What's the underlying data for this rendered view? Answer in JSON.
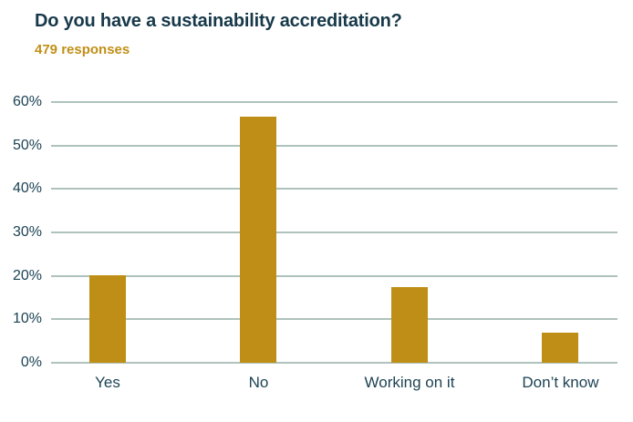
{
  "header": {
    "title": "Do you have a sustainability accreditation?",
    "subtitle": "479 responses"
  },
  "chart_data": {
    "type": "bar",
    "title": "Do you have a sustainability accreditation?",
    "subtitle": "479 responses",
    "categories": [
      "Yes",
      "No",
      "Working on it",
      "Don’t know"
    ],
    "values": [
      20.1,
      56.6,
      17.4,
      6.9
    ],
    "unit": "%",
    "xlabel": "",
    "ylabel": "",
    "ylim": [
      0,
      63
    ],
    "yticks": [
      0,
      10,
      20,
      30,
      40,
      50,
      60
    ],
    "ytick_labels": [
      "0%",
      "10%",
      "20%",
      "30%",
      "40%",
      "50%",
      "60%"
    ],
    "grid": true,
    "legend": false,
    "bar_color": "#BE8E16"
  },
  "colors": {
    "background": "#FFFFFF",
    "title_text": "#17394A",
    "subtitle_gold": "#C18F17",
    "axis_text": "#1D4355",
    "bar_gold": "#BE8E16",
    "gridline": "#AFC2BD"
  }
}
